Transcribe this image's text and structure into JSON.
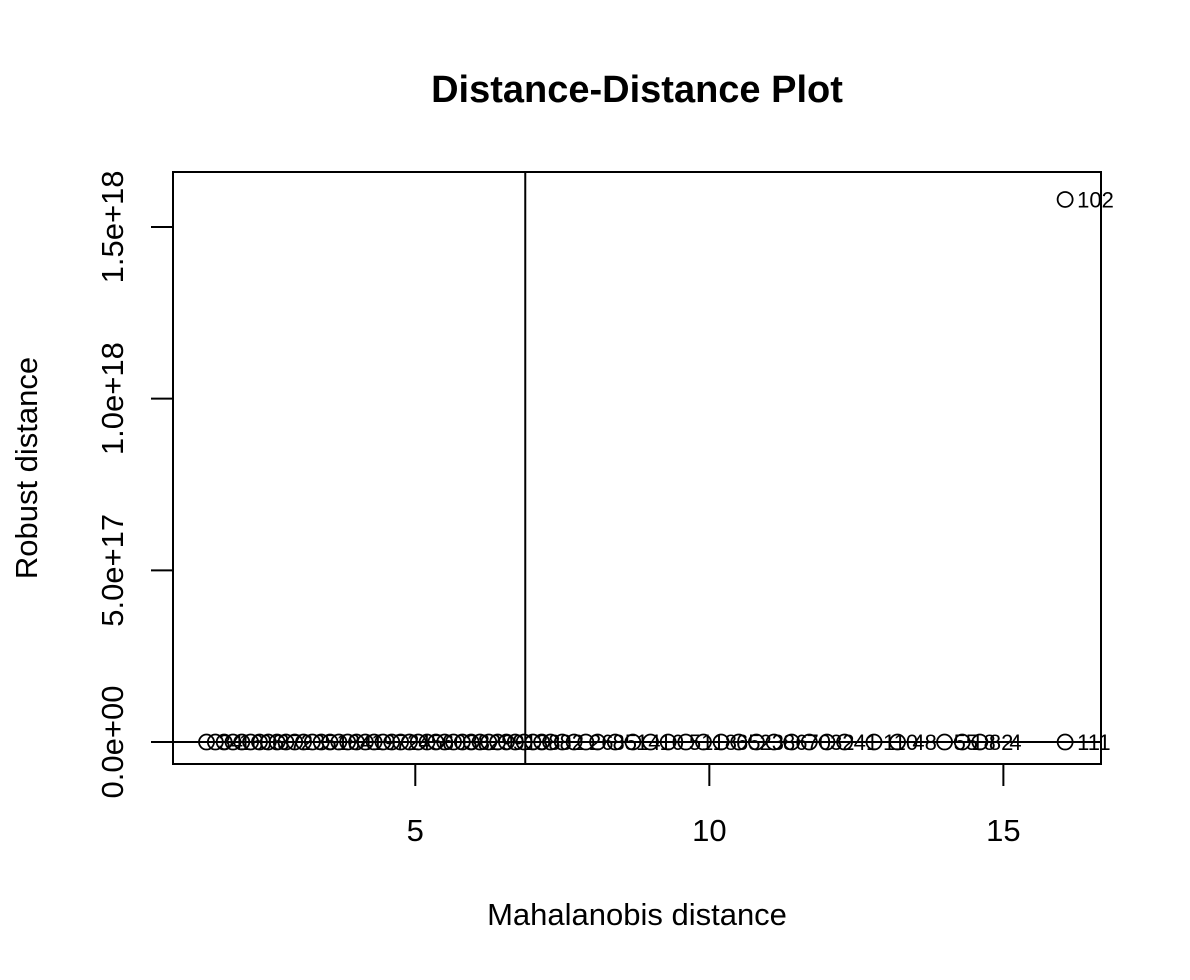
{
  "chart_data": {
    "type": "scatter",
    "title": "Distance-Distance Plot",
    "xlabel": "Mahalanobis distance",
    "ylabel": "Robust distance",
    "xlim": [
      0.88,
      16.66
    ],
    "ylim": [
      -6.4e+16,
      1.66e+18
    ],
    "x_ticks": [
      5,
      10,
      15
    ],
    "x_tick_labels": [
      "5",
      "10",
      "15"
    ],
    "y_ticks": [
      0,
      5e+17,
      1e+18,
      1.5e+18
    ],
    "y_tick_labels": [
      "0.0e+00",
      "5.0e+17",
      "1.0e+18",
      "1.5e+18"
    ],
    "cutoff_vertical": 6.87,
    "cutoff_horizontal": 6.87,
    "grid": false,
    "points": [
      {
        "x": 1.45,
        "y": 0
      },
      {
        "x": 1.6,
        "y": 0
      },
      {
        "x": 1.75,
        "y": 0
      },
      {
        "x": 1.9,
        "y": 0
      },
      {
        "x": 2.05,
        "y": 0
      },
      {
        "x": 2.2,
        "y": 0
      },
      {
        "x": 2.35,
        "y": 0
      },
      {
        "x": 2.5,
        "y": 0
      },
      {
        "x": 2.65,
        "y": 0
      },
      {
        "x": 2.8,
        "y": 0
      },
      {
        "x": 2.95,
        "y": 0
      },
      {
        "x": 3.1,
        "y": 0
      },
      {
        "x": 3.25,
        "y": 0
      },
      {
        "x": 3.4,
        "y": 0
      },
      {
        "x": 3.55,
        "y": 0
      },
      {
        "x": 3.7,
        "y": 0
      },
      {
        "x": 3.85,
        "y": 0
      },
      {
        "x": 4.0,
        "y": 0
      },
      {
        "x": 4.15,
        "y": 0
      },
      {
        "x": 4.3,
        "y": 0
      },
      {
        "x": 4.45,
        "y": 0
      },
      {
        "x": 4.6,
        "y": 0
      },
      {
        "x": 4.75,
        "y": 0
      },
      {
        "x": 4.9,
        "y": 0
      },
      {
        "x": 5.05,
        "y": 0
      },
      {
        "x": 5.2,
        "y": 0
      },
      {
        "x": 5.35,
        "y": 0
      },
      {
        "x": 5.5,
        "y": 0
      },
      {
        "x": 5.65,
        "y": 0
      },
      {
        "x": 5.8,
        "y": 0
      },
      {
        "x": 5.95,
        "y": 0
      },
      {
        "x": 6.1,
        "y": 0
      },
      {
        "x": 6.25,
        "y": 0
      },
      {
        "x": 6.4,
        "y": 0
      },
      {
        "x": 6.55,
        "y": 0
      },
      {
        "x": 6.7,
        "y": 0
      },
      {
        "x": 6.85,
        "y": 0
      },
      {
        "x": 7.0,
        "y": 0
      },
      {
        "x": 7.15,
        "y": 0
      },
      {
        "x": 7.3,
        "y": 0
      },
      {
        "x": 7.5,
        "y": 0
      },
      {
        "x": 7.7,
        "y": 0
      },
      {
        "x": 7.9,
        "y": 0
      },
      {
        "x": 8.1,
        "y": 0
      },
      {
        "x": 8.4,
        "y": 0
      },
      {
        "x": 8.7,
        "y": 0
      },
      {
        "x": 9.0,
        "y": 0
      },
      {
        "x": 9.3,
        "y": 0
      },
      {
        "x": 9.6,
        "y": 0
      },
      {
        "x": 9.9,
        "y": 0
      },
      {
        "x": 10.2,
        "y": 0
      },
      {
        "x": 10.5,
        "y": 0
      },
      {
        "x": 10.8,
        "y": 0
      },
      {
        "x": 11.1,
        "y": 0
      },
      {
        "x": 11.4,
        "y": 0
      },
      {
        "x": 11.7,
        "y": 0
      },
      {
        "x": 12.0,
        "y": 0
      },
      {
        "x": 12.3,
        "y": 0
      },
      {
        "x": 12.8,
        "y": 0
      },
      {
        "x": 13.2,
        "y": 0
      },
      {
        "x": 14.0,
        "y": 0
      },
      {
        "x": 14.3,
        "y": 0
      },
      {
        "x": 14.6,
        "y": 0
      },
      {
        "x": 16.05,
        "y": 0,
        "label": "111"
      },
      {
        "x": 16.05,
        "y": 1.58e+18,
        "label": "102"
      }
    ],
    "crowded_labels": [
      {
        "x": 1.5,
        "text": "34"
      },
      {
        "x": 1.85,
        "text": "16"
      },
      {
        "x": 2.2,
        "text": "06"
      },
      {
        "x": 2.5,
        "text": "37"
      },
      {
        "x": 2.9,
        "text": "23"
      },
      {
        "x": 3.3,
        "text": "51"
      },
      {
        "x": 3.7,
        "text": "84"
      },
      {
        "x": 4.1,
        "text": "19"
      },
      {
        "x": 4.5,
        "text": "72"
      },
      {
        "x": 4.9,
        "text": "45"
      },
      {
        "x": 5.3,
        "text": "60"
      },
      {
        "x": 5.7,
        "text": "38"
      },
      {
        "x": 6.1,
        "text": "29"
      },
      {
        "x": 6.5,
        "text": "91"
      },
      {
        "x": 6.9,
        "text": "38"
      },
      {
        "x": 7.3,
        "text": "82"
      },
      {
        "x": 7.8,
        "text": "26"
      },
      {
        "x": 8.2,
        "text": "85"
      },
      {
        "x": 8.6,
        "text": "14"
      },
      {
        "x": 9.0,
        "text": "10"
      },
      {
        "x": 9.5,
        "text": "51"
      },
      {
        "x": 9.9,
        "text": "18"
      },
      {
        "x": 10.3,
        "text": "65"
      },
      {
        "x": 10.7,
        "text": "23"
      },
      {
        "x": 11.1,
        "text": "86"
      },
      {
        "x": 11.5,
        "text": "70"
      },
      {
        "x": 11.9,
        "text": "32"
      },
      {
        "x": 12.3,
        "text": "41"
      },
      {
        "x": 12.8,
        "text": "110"
      },
      {
        "x": 13.3,
        "text": "48"
      },
      {
        "x": 14.0,
        "text": "55"
      },
      {
        "x": 14.3,
        "text": "18"
      },
      {
        "x": 14.6,
        "text": "82"
      },
      {
        "x": 14.95,
        "text": "4"
      }
    ]
  }
}
